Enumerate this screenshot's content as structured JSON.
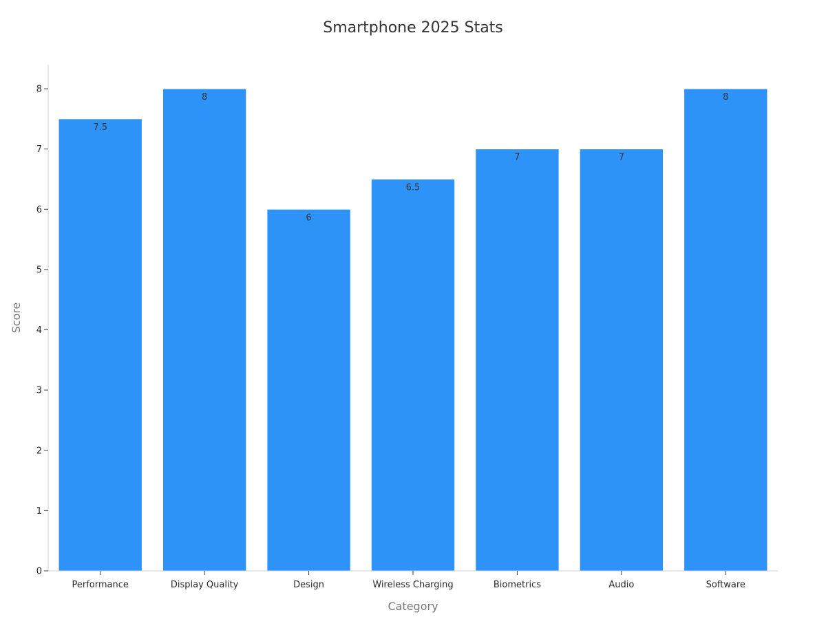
{
  "chart_data": {
    "type": "bar",
    "title": "Smartphone 2025 Stats",
    "xlabel": "Category",
    "ylabel": "Score",
    "categories": [
      "Performance",
      "Display Quality",
      "Design",
      "Wireless Charging",
      "Biometrics",
      "Audio",
      "Software"
    ],
    "values": [
      7.5,
      8,
      6,
      6.5,
      7,
      7,
      8
    ],
    "data_labels": [
      "7.5",
      "8",
      "6",
      "6.5",
      "7",
      "7",
      "8"
    ],
    "ylim": [
      0,
      8.4
    ],
    "yticks": [
      0,
      1,
      2,
      3,
      4,
      5,
      6,
      7,
      8
    ],
    "ytick_labels": [
      "0",
      "1",
      "2",
      "3",
      "4",
      "5",
      "6",
      "7",
      "8"
    ],
    "grid": false,
    "legend": "none",
    "bar_color": "#2E93F9"
  }
}
